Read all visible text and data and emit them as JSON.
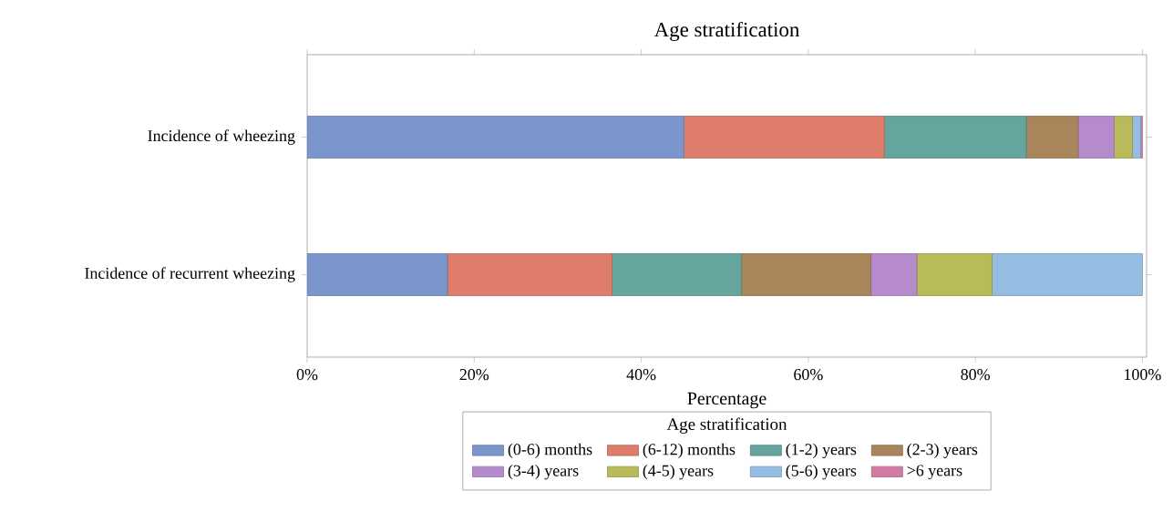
{
  "chart_data": {
    "type": "bar",
    "orientation": "horizontal",
    "stacked": true,
    "title": "Age stratification",
    "xlabel": "Percentage",
    "legend_title": "Age stratification",
    "legend": "bottom",
    "categories": [
      "Incidence of wheezing",
      "Incidence of recurrent wheezing"
    ],
    "xlim": [
      0,
      100.5
    ],
    "xticks": [
      {
        "value": 0,
        "label": "0%"
      },
      {
        "value": 20,
        "label": "20%"
      },
      {
        "value": 40,
        "label": "40%"
      },
      {
        "value": 60,
        "label": "60%"
      },
      {
        "value": 80,
        "label": "80%"
      },
      {
        "value": 100,
        "label": "100%"
      }
    ],
    "series": [
      {
        "name": "(0-6) months",
        "color": "#7b96cd",
        "values": [
          45.1,
          16.8
        ]
      },
      {
        "name": "(6-12) months",
        "color": "#df7d6d",
        "values": [
          24.0,
          19.7
        ]
      },
      {
        "name": "(1-2) years",
        "color": "#66a59e",
        "values": [
          17.0,
          15.5
        ]
      },
      {
        "name": "(2-3) years",
        "color": "#a8855b",
        "values": [
          6.2,
          15.5
        ]
      },
      {
        "name": "(3-4) years",
        "color": "#b68bcc",
        "values": [
          4.3,
          5.5
        ]
      },
      {
        "name": "(4-5) years",
        "color": "#b9bb5b",
        "values": [
          2.2,
          9.0
        ]
      },
      {
        "name": "(5-6) years",
        "color": "#95bde2",
        "values": [
          1.0,
          18.0
        ]
      },
      {
        "name": ">6 years",
        "color": "#d27ba3",
        "values": [
          0.2,
          0
        ]
      }
    ]
  }
}
